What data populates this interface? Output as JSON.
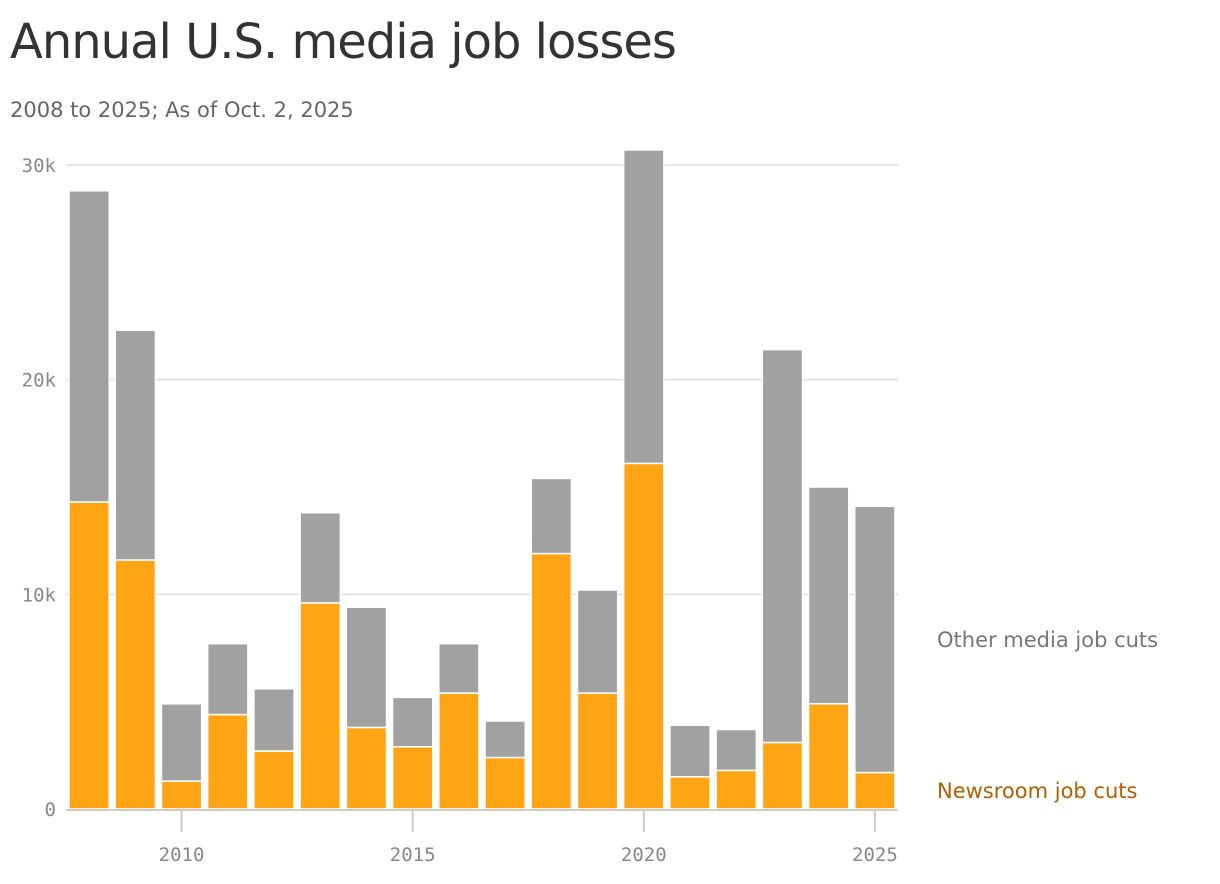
{
  "chart_data": {
    "type": "bar",
    "stacked": true,
    "title": "Annual U.S. media job losses",
    "subtitle": "2008 to 2025; As of Oct. 2, 2025",
    "x": [
      2008,
      2009,
      2010,
      2011,
      2012,
      2013,
      2014,
      2015,
      2016,
      2017,
      2018,
      2019,
      2020,
      2021,
      2022,
      2023,
      2024,
      2025
    ],
    "series": [
      {
        "name": "Newsroom job cuts",
        "color": "#FFA515",
        "values": [
          14300,
          11600,
          1300,
          4400,
          2700,
          9600,
          3800,
          2900,
          5400,
          2400,
          11900,
          5400,
          16100,
          1500,
          1800,
          3100,
          4900,
          1700
        ]
      },
      {
        "name": "Other media job cuts",
        "color": "#A0A1A0",
        "values": [
          14500,
          10700,
          3600,
          3300,
          2900,
          4200,
          5600,
          2300,
          2300,
          1700,
          3500,
          4800,
          14600,
          2400,
          1900,
          18300,
          10100,
          12400
        ]
      }
    ],
    "ylim": [
      0,
      30000
    ],
    "yticks": [
      0,
      10000,
      20000,
      30000
    ],
    "ytick_labels": [
      "0",
      "10k",
      "20k",
      "30k"
    ],
    "xticks": [
      2010,
      2015,
      2020,
      2025
    ],
    "xtick_labels": [
      "2010",
      "2015",
      "2020",
      "2025"
    ],
    "grid": true,
    "legend_position": "right"
  }
}
